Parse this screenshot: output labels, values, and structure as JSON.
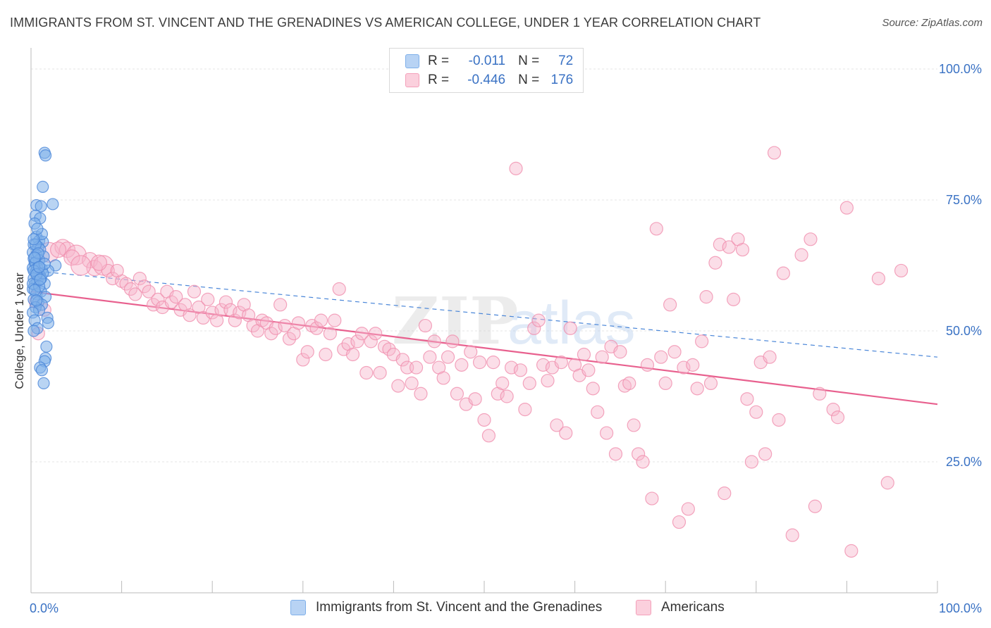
{
  "title": "IMMIGRANTS FROM ST. VINCENT AND THE GRENADINES VS AMERICAN COLLEGE, UNDER 1 YEAR CORRELATION CHART",
  "source": "Source: ZipAtlas.com",
  "watermark": {
    "zip": "ZIP",
    "atlas": "atlas"
  },
  "legend_top": {
    "rows": [
      {
        "r_label": "R =",
        "r_value": "-0.011",
        "n_label": "N =",
        "n_value": "72",
        "color": "#7fb0ea"
      },
      {
        "r_label": "R =",
        "r_value": "-0.446",
        "n_label": "N =",
        "n_value": "176",
        "color": "#f4a0ba"
      }
    ]
  },
  "legend_bottom": [
    {
      "label": "Immigrants from St. Vincent and the Grenadines",
      "color": "#7fb0ea"
    },
    {
      "label": "Americans",
      "color": "#f4a0ba"
    }
  ],
  "chart_data": {
    "type": "scatter",
    "title": "IMMIGRANTS FROM ST. VINCENT AND THE GRENADINES VS AMERICAN COLLEGE, UNDER 1 YEAR CORRELATION CHART",
    "xlabel": "",
    "ylabel": "College, Under 1 year",
    "xlim": [
      0,
      100
    ],
    "ylim": [
      0,
      100
    ],
    "x_tick_labels": [
      "0.0%",
      "100.0%"
    ],
    "y_ticks": [
      25,
      50,
      75,
      100
    ],
    "y_tick_labels": [
      "25.0%",
      "50.0%",
      "75.0%",
      "100.0%"
    ],
    "grid": true,
    "series": [
      {
        "name": "Immigrants from St. Vincent and the Grenadines",
        "color": "#5b95e0",
        "trend": {
          "x": [
            0,
            100
          ],
          "y": [
            61.5,
            45.0
          ],
          "style": "dashed"
        },
        "points": [
          [
            1.5,
            84.0
          ],
          [
            1.6,
            83.5
          ],
          [
            1.3,
            77.5
          ],
          [
            2.4,
            74.2
          ],
          [
            0.6,
            74.0
          ],
          [
            1.1,
            73.8
          ],
          [
            0.5,
            72.0
          ],
          [
            1.0,
            71.5
          ],
          [
            0.4,
            70.5
          ],
          [
            0.6,
            68.0
          ],
          [
            0.9,
            67.2
          ],
          [
            1.3,
            67.0
          ],
          [
            0.3,
            66.5
          ],
          [
            0.8,
            66.0
          ],
          [
            1.0,
            65.5
          ],
          [
            0.2,
            65.0
          ],
          [
            0.6,
            64.5
          ],
          [
            1.4,
            64.2
          ],
          [
            0.3,
            63.8
          ],
          [
            0.9,
            63.5
          ],
          [
            0.4,
            63.0
          ],
          [
            2.7,
            62.5
          ],
          [
            0.2,
            62.0
          ],
          [
            1.2,
            61.8
          ],
          [
            1.9,
            61.5
          ],
          [
            0.5,
            61.2
          ],
          [
            0.8,
            61.0
          ],
          [
            1.0,
            60.5
          ],
          [
            0.3,
            60.0
          ],
          [
            0.7,
            59.5
          ],
          [
            1.5,
            59.0
          ],
          [
            0.4,
            58.8
          ],
          [
            0.2,
            58.0
          ],
          [
            1.1,
            57.5
          ],
          [
            0.6,
            57.0
          ],
          [
            1.6,
            56.5
          ],
          [
            0.3,
            56.0
          ],
          [
            0.8,
            55.5
          ],
          [
            1.2,
            55.0
          ],
          [
            0.5,
            54.5
          ],
          [
            0.9,
            54.0
          ],
          [
            0.2,
            53.5
          ],
          [
            1.8,
            52.5
          ],
          [
            0.4,
            52.0
          ],
          [
            1.9,
            51.5
          ],
          [
            0.7,
            50.5
          ],
          [
            0.3,
            50.0
          ],
          [
            1.7,
            47.0
          ],
          [
            1.6,
            44.8
          ],
          [
            1.5,
            44.2
          ],
          [
            1.0,
            43.0
          ],
          [
            1.2,
            42.5
          ],
          [
            1.4,
            40.0
          ],
          [
            0.5,
            63.0
          ],
          [
            0.7,
            62.0
          ],
          [
            1.1,
            60.0
          ],
          [
            0.2,
            59.0
          ],
          [
            0.9,
            58.5
          ],
          [
            0.4,
            57.8
          ],
          [
            0.6,
            55.8
          ],
          [
            1.3,
            61.0
          ],
          [
            0.5,
            66.5
          ],
          [
            1.2,
            68.5
          ],
          [
            0.7,
            69.5
          ],
          [
            0.3,
            61.5
          ],
          [
            0.6,
            60.8
          ],
          [
            1.0,
            59.8
          ],
          [
            0.8,
            64.8
          ],
          [
            0.4,
            64.0
          ],
          [
            1.5,
            62.8
          ],
          [
            0.9,
            62.2
          ],
          [
            0.3,
            67.5
          ]
        ]
      },
      {
        "name": "Americans",
        "color": "#f08fae",
        "trend": {
          "x": [
            0,
            100
          ],
          "y": [
            57.5,
            36.0
          ],
          "style": "solid"
        },
        "points": [
          [
            0.5,
            55.5
          ],
          [
            0.8,
            49.5
          ],
          [
            1.5,
            54.0
          ],
          [
            2.0,
            65.0
          ],
          [
            3.5,
            66.0
          ],
          [
            4.0,
            65.5
          ],
          [
            5.0,
            64.5
          ],
          [
            6.5,
            63.5
          ],
          [
            7.0,
            62.0
          ],
          [
            8.0,
            62.5
          ],
          [
            8.5,
            61.5
          ],
          [
            9.0,
            60.0
          ],
          [
            10.0,
            59.5
          ],
          [
            10.5,
            59.0
          ],
          [
            11.0,
            58.0
          ],
          [
            12.0,
            60.0
          ],
          [
            12.5,
            58.5
          ],
          [
            13.0,
            57.5
          ],
          [
            13.5,
            55.0
          ],
          [
            14.0,
            56.0
          ],
          [
            14.5,
            54.5
          ],
          [
            15.0,
            57.5
          ],
          [
            15.5,
            55.5
          ],
          [
            16.0,
            56.5
          ],
          [
            16.5,
            54.0
          ],
          [
            17.0,
            55.0
          ],
          [
            17.5,
            53.0
          ],
          [
            18.0,
            57.5
          ],
          [
            18.5,
            54.5
          ],
          [
            19.0,
            52.5
          ],
          [
            19.5,
            56.0
          ],
          [
            20.0,
            53.5
          ],
          [
            20.5,
            52.0
          ],
          [
            21.0,
            54.0
          ],
          [
            21.5,
            55.5
          ],
          [
            22.0,
            54.0
          ],
          [
            22.5,
            52.0
          ],
          [
            23.0,
            53.5
          ],
          [
            23.5,
            55.0
          ],
          [
            24.0,
            53.0
          ],
          [
            24.5,
            51.0
          ],
          [
            25.0,
            50.0
          ],
          [
            25.5,
            52.0
          ],
          [
            26.0,
            51.5
          ],
          [
            26.5,
            49.5
          ],
          [
            27.0,
            50.5
          ],
          [
            27.5,
            55.0
          ],
          [
            28.0,
            51.0
          ],
          [
            28.5,
            48.5
          ],
          [
            29.0,
            49.5
          ],
          [
            29.5,
            51.5
          ],
          [
            30.0,
            44.5
          ],
          [
            30.5,
            46.0
          ],
          [
            31.0,
            51.0
          ],
          [
            31.5,
            50.5
          ],
          [
            32.0,
            52.0
          ],
          [
            32.5,
            45.5
          ],
          [
            33.0,
            49.5
          ],
          [
            33.5,
            52.0
          ],
          [
            34.0,
            58.0
          ],
          [
            34.5,
            46.5
          ],
          [
            35.0,
            47.5
          ],
          [
            35.5,
            45.5
          ],
          [
            36.0,
            48.0
          ],
          [
            36.5,
            49.5
          ],
          [
            37.0,
            42.0
          ],
          [
            37.5,
            48.0
          ],
          [
            38.0,
            49.5
          ],
          [
            38.5,
            42.0
          ],
          [
            39.0,
            47.0
          ],
          [
            39.5,
            46.5
          ],
          [
            40.0,
            45.5
          ],
          [
            40.5,
            39.5
          ],
          [
            41.0,
            44.5
          ],
          [
            41.5,
            43.0
          ],
          [
            42.0,
            40.0
          ],
          [
            42.5,
            43.0
          ],
          [
            43.0,
            38.0
          ],
          [
            43.5,
            51.0
          ],
          [
            44.0,
            45.0
          ],
          [
            44.5,
            48.0
          ],
          [
            45.0,
            43.0
          ],
          [
            45.5,
            41.0
          ],
          [
            46.0,
            45.0
          ],
          [
            46.5,
            48.0
          ],
          [
            47.0,
            38.0
          ],
          [
            47.5,
            43.5
          ],
          [
            48.0,
            36.0
          ],
          [
            48.5,
            46.0
          ],
          [
            49.0,
            37.0
          ],
          [
            49.5,
            44.0
          ],
          [
            50.0,
            33.0
          ],
          [
            50.5,
            30.0
          ],
          [
            51.0,
            44.0
          ],
          [
            51.5,
            38.0
          ],
          [
            52.0,
            40.0
          ],
          [
            52.5,
            37.5
          ],
          [
            53.0,
            43.0
          ],
          [
            53.5,
            81.0
          ],
          [
            54.0,
            42.5
          ],
          [
            54.5,
            35.0
          ],
          [
            55.0,
            40.0
          ],
          [
            55.5,
            50.5
          ],
          [
            56.0,
            52.0
          ],
          [
            56.5,
            43.5
          ],
          [
            57.0,
            40.5
          ],
          [
            57.5,
            43.0
          ],
          [
            58.0,
            32.0
          ],
          [
            58.5,
            44.0
          ],
          [
            59.0,
            30.5
          ],
          [
            59.5,
            50.5
          ],
          [
            60.0,
            43.5
          ],
          [
            60.5,
            41.5
          ],
          [
            61.0,
            45.5
          ],
          [
            61.5,
            42.5
          ],
          [
            62.0,
            39.0
          ],
          [
            62.5,
            34.5
          ],
          [
            63.0,
            45.0
          ],
          [
            63.5,
            30.5
          ],
          [
            64.0,
            47.0
          ],
          [
            64.5,
            26.5
          ],
          [
            65.0,
            46.0
          ],
          [
            65.5,
            39.5
          ],
          [
            66.0,
            40.0
          ],
          [
            66.5,
            32.0
          ],
          [
            67.0,
            26.5
          ],
          [
            67.5,
            25.0
          ],
          [
            68.0,
            43.5
          ],
          [
            68.5,
            18.0
          ],
          [
            69.0,
            69.5
          ],
          [
            69.5,
            45.0
          ],
          [
            70.0,
            40.0
          ],
          [
            70.5,
            55.0
          ],
          [
            71.0,
            46.0
          ],
          [
            71.5,
            13.5
          ],
          [
            72.0,
            43.0
          ],
          [
            72.5,
            16.0
          ],
          [
            73.0,
            43.5
          ],
          [
            73.5,
            39.0
          ],
          [
            74.0,
            48.0
          ],
          [
            74.5,
            56.5
          ],
          [
            75.0,
            40.0
          ],
          [
            75.5,
            63.0
          ],
          [
            76.0,
            66.5
          ],
          [
            76.5,
            19.0
          ],
          [
            77.0,
            66.0
          ],
          [
            77.5,
            56.0
          ],
          [
            78.0,
            67.5
          ],
          [
            78.5,
            65.5
          ],
          [
            79.0,
            37.0
          ],
          [
            79.5,
            25.0
          ],
          [
            80.0,
            34.5
          ],
          [
            80.5,
            44.0
          ],
          [
            81.0,
            26.5
          ],
          [
            81.5,
            45.0
          ],
          [
            82.0,
            84.0
          ],
          [
            82.5,
            33.0
          ],
          [
            83.0,
            61.0
          ],
          [
            84.0,
            11.0
          ],
          [
            85.0,
            64.5
          ],
          [
            86.0,
            67.5
          ],
          [
            86.5,
            16.5
          ],
          [
            87.0,
            38.0
          ],
          [
            88.5,
            35.0
          ],
          [
            89.0,
            33.5
          ],
          [
            90.0,
            73.5
          ],
          [
            90.5,
            8.0
          ],
          [
            93.5,
            60.0
          ],
          [
            94.5,
            21.0
          ],
          [
            96.0,
            61.5
          ],
          [
            9.5,
            61.5
          ],
          [
            11.5,
            57.0
          ],
          [
            3.0,
            65.5
          ],
          [
            4.5,
            64.0
          ],
          [
            5.5,
            62.5
          ],
          [
            7.5,
            63.0
          ]
        ]
      }
    ]
  }
}
